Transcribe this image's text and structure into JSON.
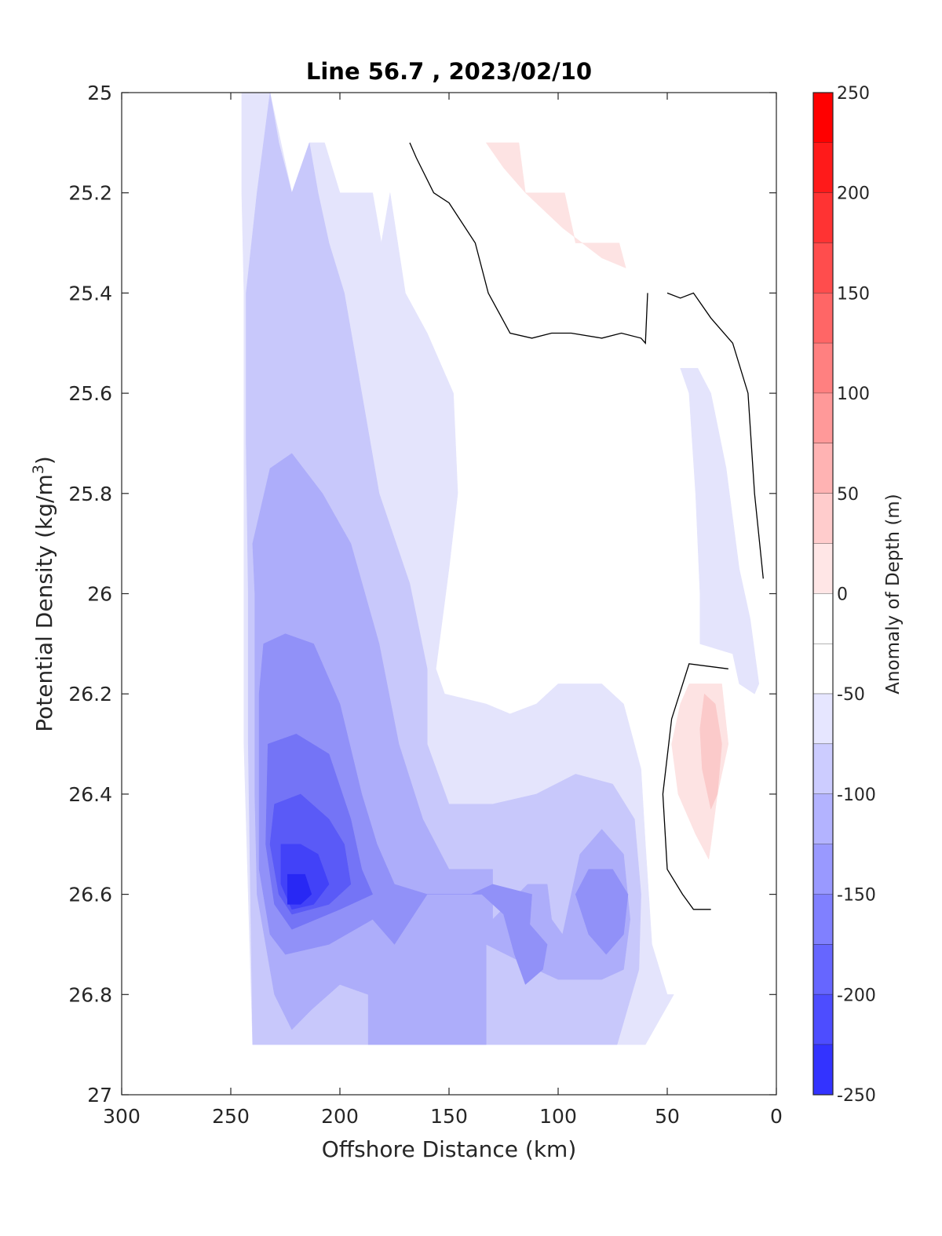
{
  "chart_data": {
    "type": "filled-contour",
    "title": "Line 56.7 , 2023/02/10",
    "xlabel": "Offshore Distance (km)",
    "ylabel": "Potential Density (kg/m",
    "ylabel_superscript": "3",
    "ylabel_suffix": ")",
    "x_reversed": true,
    "y_reversed": true,
    "xlim": [
      0,
      300
    ],
    "ylim": [
      25,
      27
    ],
    "x_ticks": [
      300,
      250,
      200,
      150,
      100,
      50,
      0
    ],
    "x_tick_labels": [
      "300",
      "250",
      "200",
      "150",
      "100",
      "50",
      "0"
    ],
    "y_ticks": [
      25,
      25.2,
      25.4,
      25.6,
      25.8,
      26,
      26.2,
      26.4,
      26.6,
      26.8,
      27
    ],
    "y_tick_labels": [
      "25",
      "25.2",
      "25.4",
      "25.6",
      "25.8",
      "26",
      "26.2",
      "26.4",
      "26.6",
      "26.8",
      "27"
    ],
    "colorbar": {
      "label": "Anomaly of Depth (m)",
      "range": [
        -250,
        250
      ],
      "ticks": [
        250,
        200,
        150,
        100,
        50,
        0,
        -50,
        -100,
        -150,
        -200,
        -250
      ],
      "tick_labels": [
        "250",
        "200",
        "150",
        "100",
        "50",
        "0",
        "-50",
        "-100",
        "-150",
        "-200",
        "-250"
      ],
      "levels": [
        {
          "from": 225,
          "to": 250,
          "color": "#ff0000"
        },
        {
          "from": 200,
          "to": 225,
          "color": "#ff1a1a"
        },
        {
          "from": 175,
          "to": 200,
          "color": "#ff3333"
        },
        {
          "from": 150,
          "to": 175,
          "color": "#ff4d4d"
        },
        {
          "from": 125,
          "to": 150,
          "color": "#ff6666"
        },
        {
          "from": 100,
          "to": 125,
          "color": "#ff8080"
        },
        {
          "from": 75,
          "to": 100,
          "color": "#ff9999"
        },
        {
          "from": 50,
          "to": 75,
          "color": "#ffb3b3"
        },
        {
          "from": 25,
          "to": 50,
          "color": "#ffcccc"
        },
        {
          "from": 0,
          "to": 25,
          "color": "#ffe6e6"
        },
        {
          "from": -25,
          "to": 0,
          "color": "#ffffff"
        },
        {
          "from": -50,
          "to": -25,
          "color": "#ffffff"
        },
        {
          "from": -75,
          "to": -50,
          "color": "#e6e6ff"
        },
        {
          "from": -100,
          "to": -75,
          "color": "#ccccff"
        },
        {
          "from": -125,
          "to": -100,
          "color": "#b3b3ff"
        },
        {
          "from": -150,
          "to": -125,
          "color": "#9999ff"
        },
        {
          "from": -175,
          "to": -150,
          "color": "#8080ff"
        },
        {
          "from": -200,
          "to": -175,
          "color": "#6666ff"
        },
        {
          "from": -225,
          "to": -200,
          "color": "#4d4dff"
        },
        {
          "from": -250,
          "to": -225,
          "color": "#3333ff"
        }
      ]
    },
    "regions": [
      {
        "level": -25,
        "color": "#e4e4fc",
        "points": [
          [
            245,
            25
          ],
          [
            232,
            25
          ],
          [
            222,
            25.2
          ],
          [
            214,
            25.1
          ],
          [
            207,
            25.1
          ],
          [
            200,
            25.2
          ],
          [
            185,
            25.2
          ],
          [
            181,
            25.3
          ],
          [
            177,
            25.2
          ],
          [
            170,
            25.4
          ],
          [
            160,
            25.48
          ],
          [
            148,
            25.6
          ],
          [
            146,
            25.8
          ],
          [
            150,
            25.95
          ],
          [
            156,
            26.15
          ],
          [
            152,
            26.2
          ],
          [
            133,
            26.22
          ],
          [
            122,
            26.24
          ],
          [
            110,
            26.22
          ],
          [
            100,
            26.18
          ],
          [
            80,
            26.18
          ],
          [
            70,
            26.22
          ],
          [
            62,
            26.35
          ],
          [
            60,
            26.5
          ],
          [
            57,
            26.7
          ],
          [
            50,
            26.8
          ],
          [
            47,
            26.8
          ],
          [
            60,
            26.9
          ],
          [
            240,
            26.9
          ],
          [
            242,
            26.6
          ],
          [
            244,
            26.3
          ],
          [
            244,
            26.0
          ],
          [
            244,
            25.6
          ],
          [
            244,
            25.4
          ],
          [
            245,
            25.2
          ]
        ]
      },
      {
        "level": -25,
        "color": "#e4e4fc",
        "points": [
          [
            44,
            25.55
          ],
          [
            40,
            25.6
          ],
          [
            37,
            25.8
          ],
          [
            35,
            26.0
          ],
          [
            35,
            26.1
          ],
          [
            20,
            26.12
          ],
          [
            17,
            26.18
          ],
          [
            10,
            26.2
          ],
          [
            8,
            26.18
          ],
          [
            12,
            26.05
          ],
          [
            17,
            25.95
          ],
          [
            23,
            25.75
          ],
          [
            30,
            25.6
          ],
          [
            36,
            25.55
          ]
        ]
      },
      {
        "level": -50,
        "color": "#c8c8fb",
        "points": [
          [
            243,
            25.4
          ],
          [
            238,
            25.2
          ],
          [
            232,
            25
          ],
          [
            228,
            25.1
          ],
          [
            222,
            25.2
          ],
          [
            214,
            25.1
          ],
          [
            210,
            25.2
          ],
          [
            205,
            25.3
          ],
          [
            198,
            25.4
          ],
          [
            190,
            25.6
          ],
          [
            182,
            25.8
          ],
          [
            168,
            25.98
          ],
          [
            160,
            26.15
          ],
          [
            160,
            26.3
          ],
          [
            150,
            26.42
          ],
          [
            130,
            26.42
          ],
          [
            110,
            26.4
          ],
          [
            92,
            26.36
          ],
          [
            75,
            26.38
          ],
          [
            65,
            26.45
          ],
          [
            62,
            26.6
          ],
          [
            63,
            26.75
          ],
          [
            73,
            26.9
          ],
          [
            240,
            26.9
          ],
          [
            241,
            26.6
          ],
          [
            242,
            26.3
          ],
          [
            242,
            26.0
          ],
          [
            243,
            25.7
          ]
        ]
      },
      {
        "level": -75,
        "color": "#adadfa",
        "points": [
          [
            240,
            25.9
          ],
          [
            232,
            25.75
          ],
          [
            222,
            25.72
          ],
          [
            208,
            25.8
          ],
          [
            195,
            25.9
          ],
          [
            182,
            26.1
          ],
          [
            173,
            26.3
          ],
          [
            162,
            26.45
          ],
          [
            150,
            26.55
          ],
          [
            130,
            26.55
          ],
          [
            130,
            26.65
          ],
          [
            114,
            26.58
          ],
          [
            105,
            26.58
          ],
          [
            103,
            26.65
          ],
          [
            98,
            26.68
          ],
          [
            90,
            26.52
          ],
          [
            80,
            26.47
          ],
          [
            70,
            26.52
          ],
          [
            67,
            26.65
          ],
          [
            70,
            26.75
          ],
          [
            80,
            26.77
          ],
          [
            100,
            26.77
          ],
          [
            110,
            26.75
          ],
          [
            133,
            26.7
          ],
          [
            133,
            26.9
          ],
          [
            187,
            26.9
          ],
          [
            187,
            26.8
          ],
          [
            200,
            26.78
          ],
          [
            213,
            26.83
          ],
          [
            222,
            26.87
          ],
          [
            230,
            26.8
          ],
          [
            238,
            26.6
          ],
          [
            239,
            26.4
          ],
          [
            239,
            26.2
          ],
          [
            239,
            26.0
          ]
        ]
      },
      {
        "level": -100,
        "color": "#9191f8",
        "points": [
          [
            235,
            26.1
          ],
          [
            225,
            26.08
          ],
          [
            212,
            26.1
          ],
          [
            200,
            26.22
          ],
          [
            190,
            26.4
          ],
          [
            183,
            26.5
          ],
          [
            175,
            26.58
          ],
          [
            160,
            26.6
          ],
          [
            135,
            26.6
          ],
          [
            125,
            26.64
          ],
          [
            120,
            26.72
          ],
          [
            115,
            26.78
          ],
          [
            107,
            26.75
          ],
          [
            105,
            26.7
          ],
          [
            113,
            26.66
          ],
          [
            112,
            26.6
          ],
          [
            130,
            26.58
          ],
          [
            140,
            26.6
          ],
          [
            150,
            26.6
          ],
          [
            160,
            26.6
          ],
          [
            175,
            26.7
          ],
          [
            185,
            26.65
          ],
          [
            205,
            26.7
          ],
          [
            225,
            26.72
          ],
          [
            232,
            26.68
          ],
          [
            237,
            26.55
          ],
          [
            237,
            26.35
          ],
          [
            237,
            26.2
          ]
        ]
      },
      {
        "level": -100,
        "color": "#9191f8",
        "points": [
          [
            86,
            26.55
          ],
          [
            75,
            26.55
          ],
          [
            68,
            26.6
          ],
          [
            70,
            26.68
          ],
          [
            78,
            26.72
          ],
          [
            86,
            26.68
          ],
          [
            92,
            26.6
          ]
        ]
      },
      {
        "level": -125,
        "color": "#7474f6",
        "points": [
          [
            233,
            26.3
          ],
          [
            220,
            26.28
          ],
          [
            205,
            26.32
          ],
          [
            195,
            26.45
          ],
          [
            190,
            26.55
          ],
          [
            185,
            26.6
          ],
          [
            200,
            26.63
          ],
          [
            222,
            26.67
          ],
          [
            230,
            26.62
          ],
          [
            234,
            26.5
          ]
        ]
      },
      {
        "level": -150,
        "color": "#5a5af7",
        "points": [
          [
            230,
            26.42
          ],
          [
            218,
            26.4
          ],
          [
            205,
            26.45
          ],
          [
            198,
            26.5
          ],
          [
            195,
            26.58
          ],
          [
            205,
            26.62
          ],
          [
            222,
            26.64
          ],
          [
            228,
            26.6
          ],
          [
            232,
            26.5
          ]
        ]
      },
      {
        "level": -175,
        "color": "#4242f8",
        "points": [
          [
            227,
            26.5
          ],
          [
            218,
            26.5
          ],
          [
            210,
            26.52
          ],
          [
            205,
            26.58
          ],
          [
            212,
            26.62
          ],
          [
            222,
            26.63
          ],
          [
            227,
            26.58
          ]
        ]
      },
      {
        "level": -200,
        "color": "#2828f4",
        "points": [
          [
            224,
            26.56
          ],
          [
            216,
            26.56
          ],
          [
            213,
            26.6
          ],
          [
            218,
            26.62
          ],
          [
            224,
            26.62
          ]
        ]
      },
      {
        "level": 25,
        "color": "#fde3e3",
        "points": [
          [
            133,
            25.1
          ],
          [
            118,
            25.1
          ],
          [
            115,
            25.2
          ],
          [
            97,
            25.2
          ],
          [
            92,
            25.3
          ],
          [
            72,
            25.3
          ],
          [
            69,
            25.35
          ],
          [
            80,
            25.33
          ],
          [
            98,
            25.27
          ],
          [
            115,
            25.2
          ],
          [
            125,
            25.15
          ]
        ]
      },
      {
        "level": 25,
        "color": "#fde3e3",
        "points": [
          [
            40,
            26.18
          ],
          [
            25,
            26.18
          ],
          [
            22,
            26.3
          ],
          [
            27,
            26.4
          ],
          [
            30,
            26.5
          ],
          [
            31,
            26.53
          ],
          [
            37,
            26.48
          ],
          [
            45,
            26.4
          ],
          [
            48,
            26.3
          ],
          [
            44,
            26.22
          ]
        ]
      },
      {
        "level": 50,
        "color": "#fbcaca",
        "points": [
          [
            33,
            26.2
          ],
          [
            28,
            26.22
          ],
          [
            25,
            26.3
          ],
          [
            27,
            26.4
          ],
          [
            30,
            26.43
          ],
          [
            34,
            26.35
          ],
          [
            35,
            26.27
          ]
        ]
      }
    ],
    "contour_lines": [
      {
        "level": 0,
        "points": [
          [
            168,
            25.1
          ],
          [
            165,
            25.13
          ],
          [
            157,
            25.2
          ],
          [
            150,
            25.22
          ],
          [
            138,
            25.3
          ],
          [
            132,
            25.4
          ],
          [
            122,
            25.48
          ],
          [
            112,
            25.49
          ],
          [
            103,
            25.48
          ],
          [
            94,
            25.48
          ],
          [
            80,
            25.49
          ],
          [
            71,
            25.48
          ],
          [
            62,
            25.49
          ],
          [
            60,
            25.5
          ],
          [
            59,
            25.4
          ]
        ]
      },
      {
        "level": 0,
        "points": [
          [
            50,
            25.4
          ],
          [
            44,
            25.41
          ],
          [
            38,
            25.4
          ],
          [
            30,
            25.45
          ],
          [
            20,
            25.5
          ],
          [
            13,
            25.6
          ],
          [
            10,
            25.8
          ],
          [
            6,
            25.97
          ]
        ]
      },
      {
        "level": 0,
        "points": [
          [
            22,
            26.15
          ],
          [
            40,
            26.14
          ],
          [
            48,
            26.25
          ],
          [
            52,
            26.4
          ],
          [
            50,
            26.55
          ],
          [
            43,
            26.6
          ],
          [
            38,
            26.63
          ],
          [
            30,
            26.63
          ]
        ]
      }
    ]
  }
}
